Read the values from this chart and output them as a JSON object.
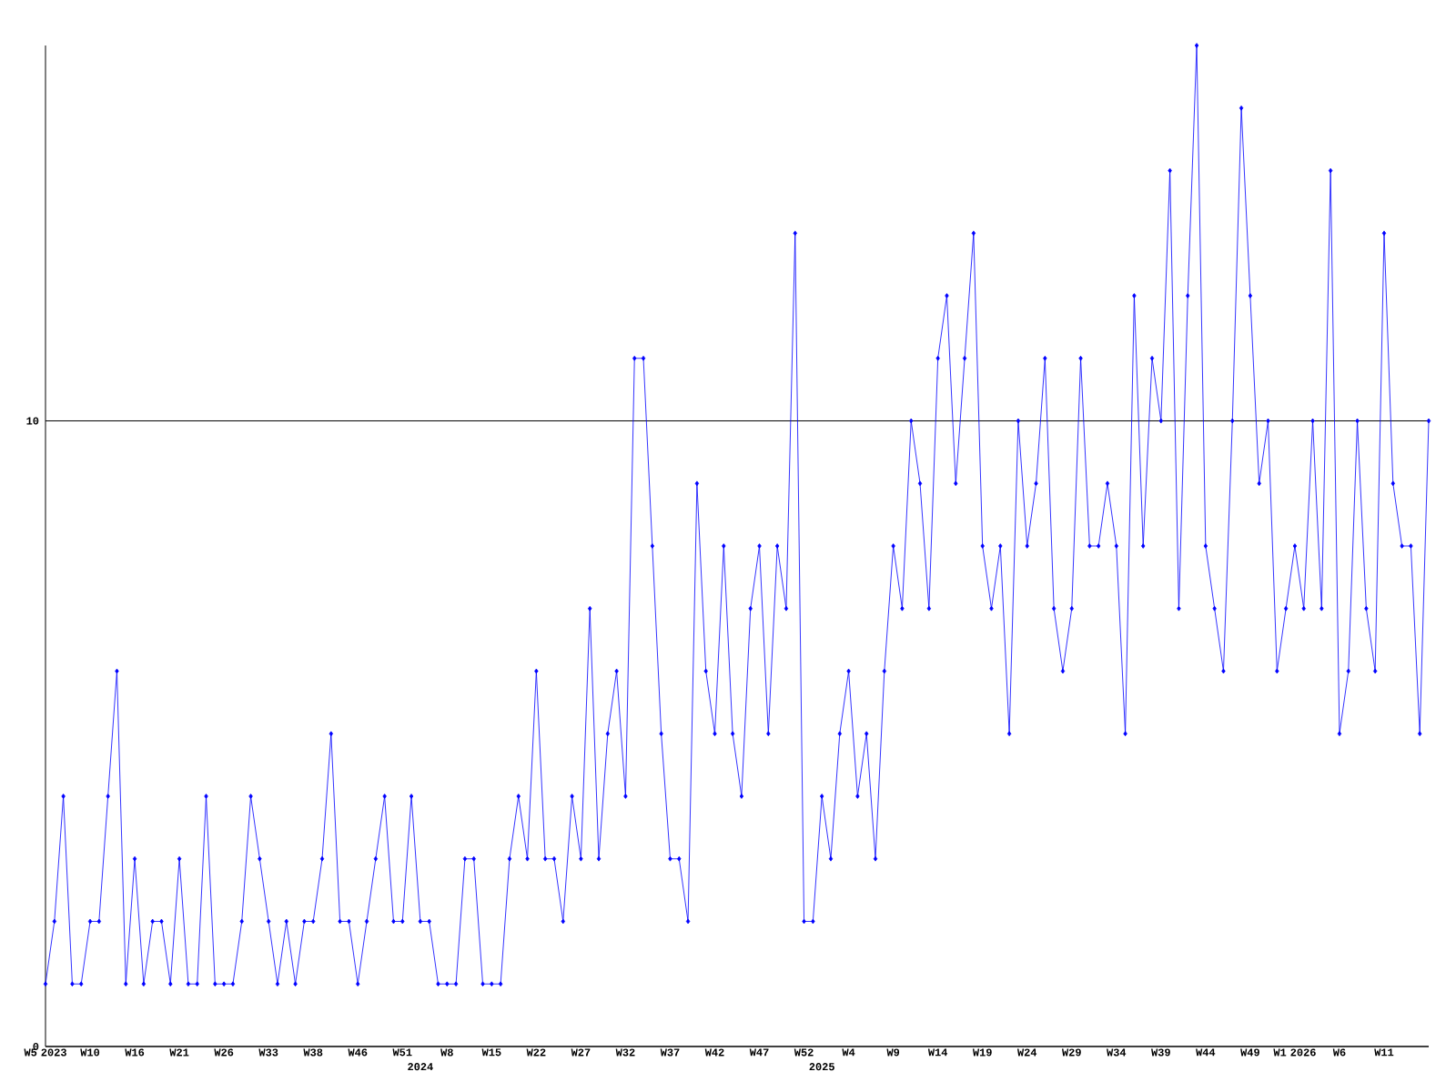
{
  "chart_data": {
    "type": "line",
    "categories": [
      "W5 2023",
      null,
      null,
      null,
      null,
      "W10",
      null,
      null,
      null,
      null,
      "W16",
      null,
      null,
      null,
      null,
      "W21",
      null,
      null,
      null,
      null,
      "W26",
      null,
      null,
      null,
      null,
      "W33",
      null,
      null,
      null,
      null,
      "W38",
      null,
      null,
      null,
      null,
      "W46",
      null,
      null,
      null,
      null,
      "W51",
      null,
      "2024",
      null,
      null,
      "W8",
      null,
      null,
      null,
      null,
      "W15",
      null,
      null,
      null,
      null,
      "W22",
      null,
      null,
      null,
      null,
      "W27",
      null,
      null,
      null,
      null,
      "W32",
      null,
      null,
      null,
      null,
      "W37",
      null,
      null,
      null,
      null,
      "W42",
      null,
      null,
      null,
      null,
      "W47",
      null,
      null,
      null,
      null,
      "W52",
      null,
      "2025",
      null,
      null,
      "W4",
      null,
      null,
      null,
      null,
      "W9",
      null,
      null,
      null,
      null,
      "W14",
      null,
      null,
      null,
      null,
      "W19",
      null,
      null,
      null,
      null,
      "W24",
      null,
      null,
      null,
      null,
      "W29",
      null,
      null,
      null,
      null,
      "W34",
      null,
      null,
      null,
      null,
      "W39",
      null,
      null,
      null,
      null,
      "W44",
      null,
      null,
      null,
      null,
      "W49",
      null,
      null,
      null,
      null,
      "W1 2026",
      null,
      null,
      null,
      null,
      "W6",
      null,
      null,
      null,
      null,
      "W11",
      null,
      null,
      null,
      null,
      null
    ],
    "values": [
      1,
      2,
      4,
      1,
      1,
      2,
      2,
      4,
      6,
      1,
      3,
      1,
      2,
      2,
      1,
      3,
      1,
      1,
      4,
      1,
      1,
      1,
      2,
      4,
      3,
      2,
      1,
      2,
      1,
      2,
      2,
      3,
      5,
      2,
      2,
      1,
      2,
      3,
      4,
      2,
      2,
      4,
      2,
      2,
      1,
      1,
      1,
      3,
      3,
      1,
      1,
      1,
      3,
      4,
      3,
      6,
      3,
      3,
      2,
      4,
      3,
      7,
      3,
      5,
      6,
      4,
      11,
      11,
      8,
      5,
      3,
      3,
      2,
      9,
      6,
      5,
      8,
      5,
      4,
      7,
      8,
      5,
      8,
      7,
      13,
      2,
      2,
      4,
      3,
      5,
      6,
      4,
      5,
      3,
      6,
      8,
      7,
      10,
      9,
      7,
      11,
      12,
      9,
      11,
      13,
      8,
      7,
      8,
      5,
      10,
      8,
      9,
      11,
      7,
      6,
      7,
      11,
      8,
      8,
      9,
      8,
      5,
      12,
      8,
      11,
      10,
      14,
      7,
      12,
      16,
      8,
      7,
      6,
      10,
      15,
      12,
      9,
      10,
      6,
      7,
      8,
      7,
      10,
      7,
      14,
      5,
      6,
      10,
      7,
      6,
      13,
      9,
      8,
      8,
      5,
      10
    ],
    "color": "#0000ff",
    "ylim": [
      0,
      16
    ],
    "yticks": [
      0,
      10
    ],
    "grid": "y",
    "marker": "diamond",
    "line_style": "solid"
  }
}
